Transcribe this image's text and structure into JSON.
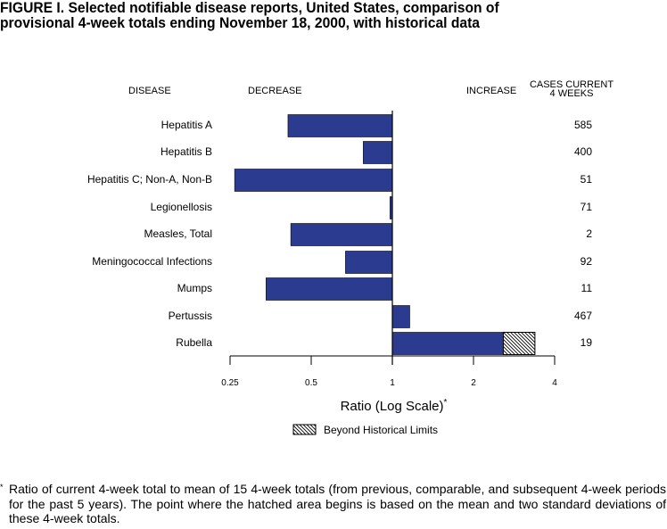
{
  "title": {
    "line1": "FIGURE I.  Selected notifiable disease reports, United States, comparison of",
    "line2": "provisional 4-week totals ending November 18, 2000, with historical data"
  },
  "headers": {
    "disease": "DISEASE",
    "decrease": "DECREASE",
    "increase": "INCREASE",
    "cases_line1": "CASES CURRENT",
    "cases_line2": "4 WEEKS"
  },
  "colors": {
    "bar": "#2b3b8f",
    "axis": "#000000",
    "background": "#ffffff"
  },
  "chart_data": {
    "type": "bar",
    "orientation": "horizontal",
    "x_scale": "log2",
    "xlabel": "Ratio (Log Scale)",
    "xlabel_marker": "*",
    "xlim": [
      0.25,
      4
    ],
    "x_ticks": [
      0.25,
      0.5,
      1,
      2,
      4
    ],
    "x_tick_labels": [
      "0.25",
      "0.5",
      "1",
      "2",
      "4"
    ],
    "reference_line": 1,
    "categories": [
      "Hepatitis A",
      "Hepatitis B",
      "Hepatitis C; Non-A, Non-B",
      "Legionellosis",
      "Measles, Total",
      "Meningococcal Infections",
      "Mumps",
      "Pertussis",
      "Rubella"
    ],
    "values": [
      0.41,
      0.78,
      0.26,
      0.98,
      0.42,
      0.67,
      0.34,
      1.16,
      3.38
    ],
    "beyond_historical_start": [
      null,
      null,
      null,
      null,
      null,
      null,
      null,
      null,
      2.58
    ],
    "cases_current_4_weeks": [
      "585",
      "400",
      "51",
      "71",
      "2",
      "92",
      "11",
      "467",
      "19"
    ],
    "legend": [
      "Beyond Historical Limits"
    ]
  },
  "footnote": {
    "marker": "*",
    "text": "Ratio of current 4-week total to mean of 15 4-week totals (from previous, comparable, and subsequent 4-week periods for the past 5 years). The point where the hatched area begins is based on the mean and two standard deviations of these 4-week totals."
  }
}
